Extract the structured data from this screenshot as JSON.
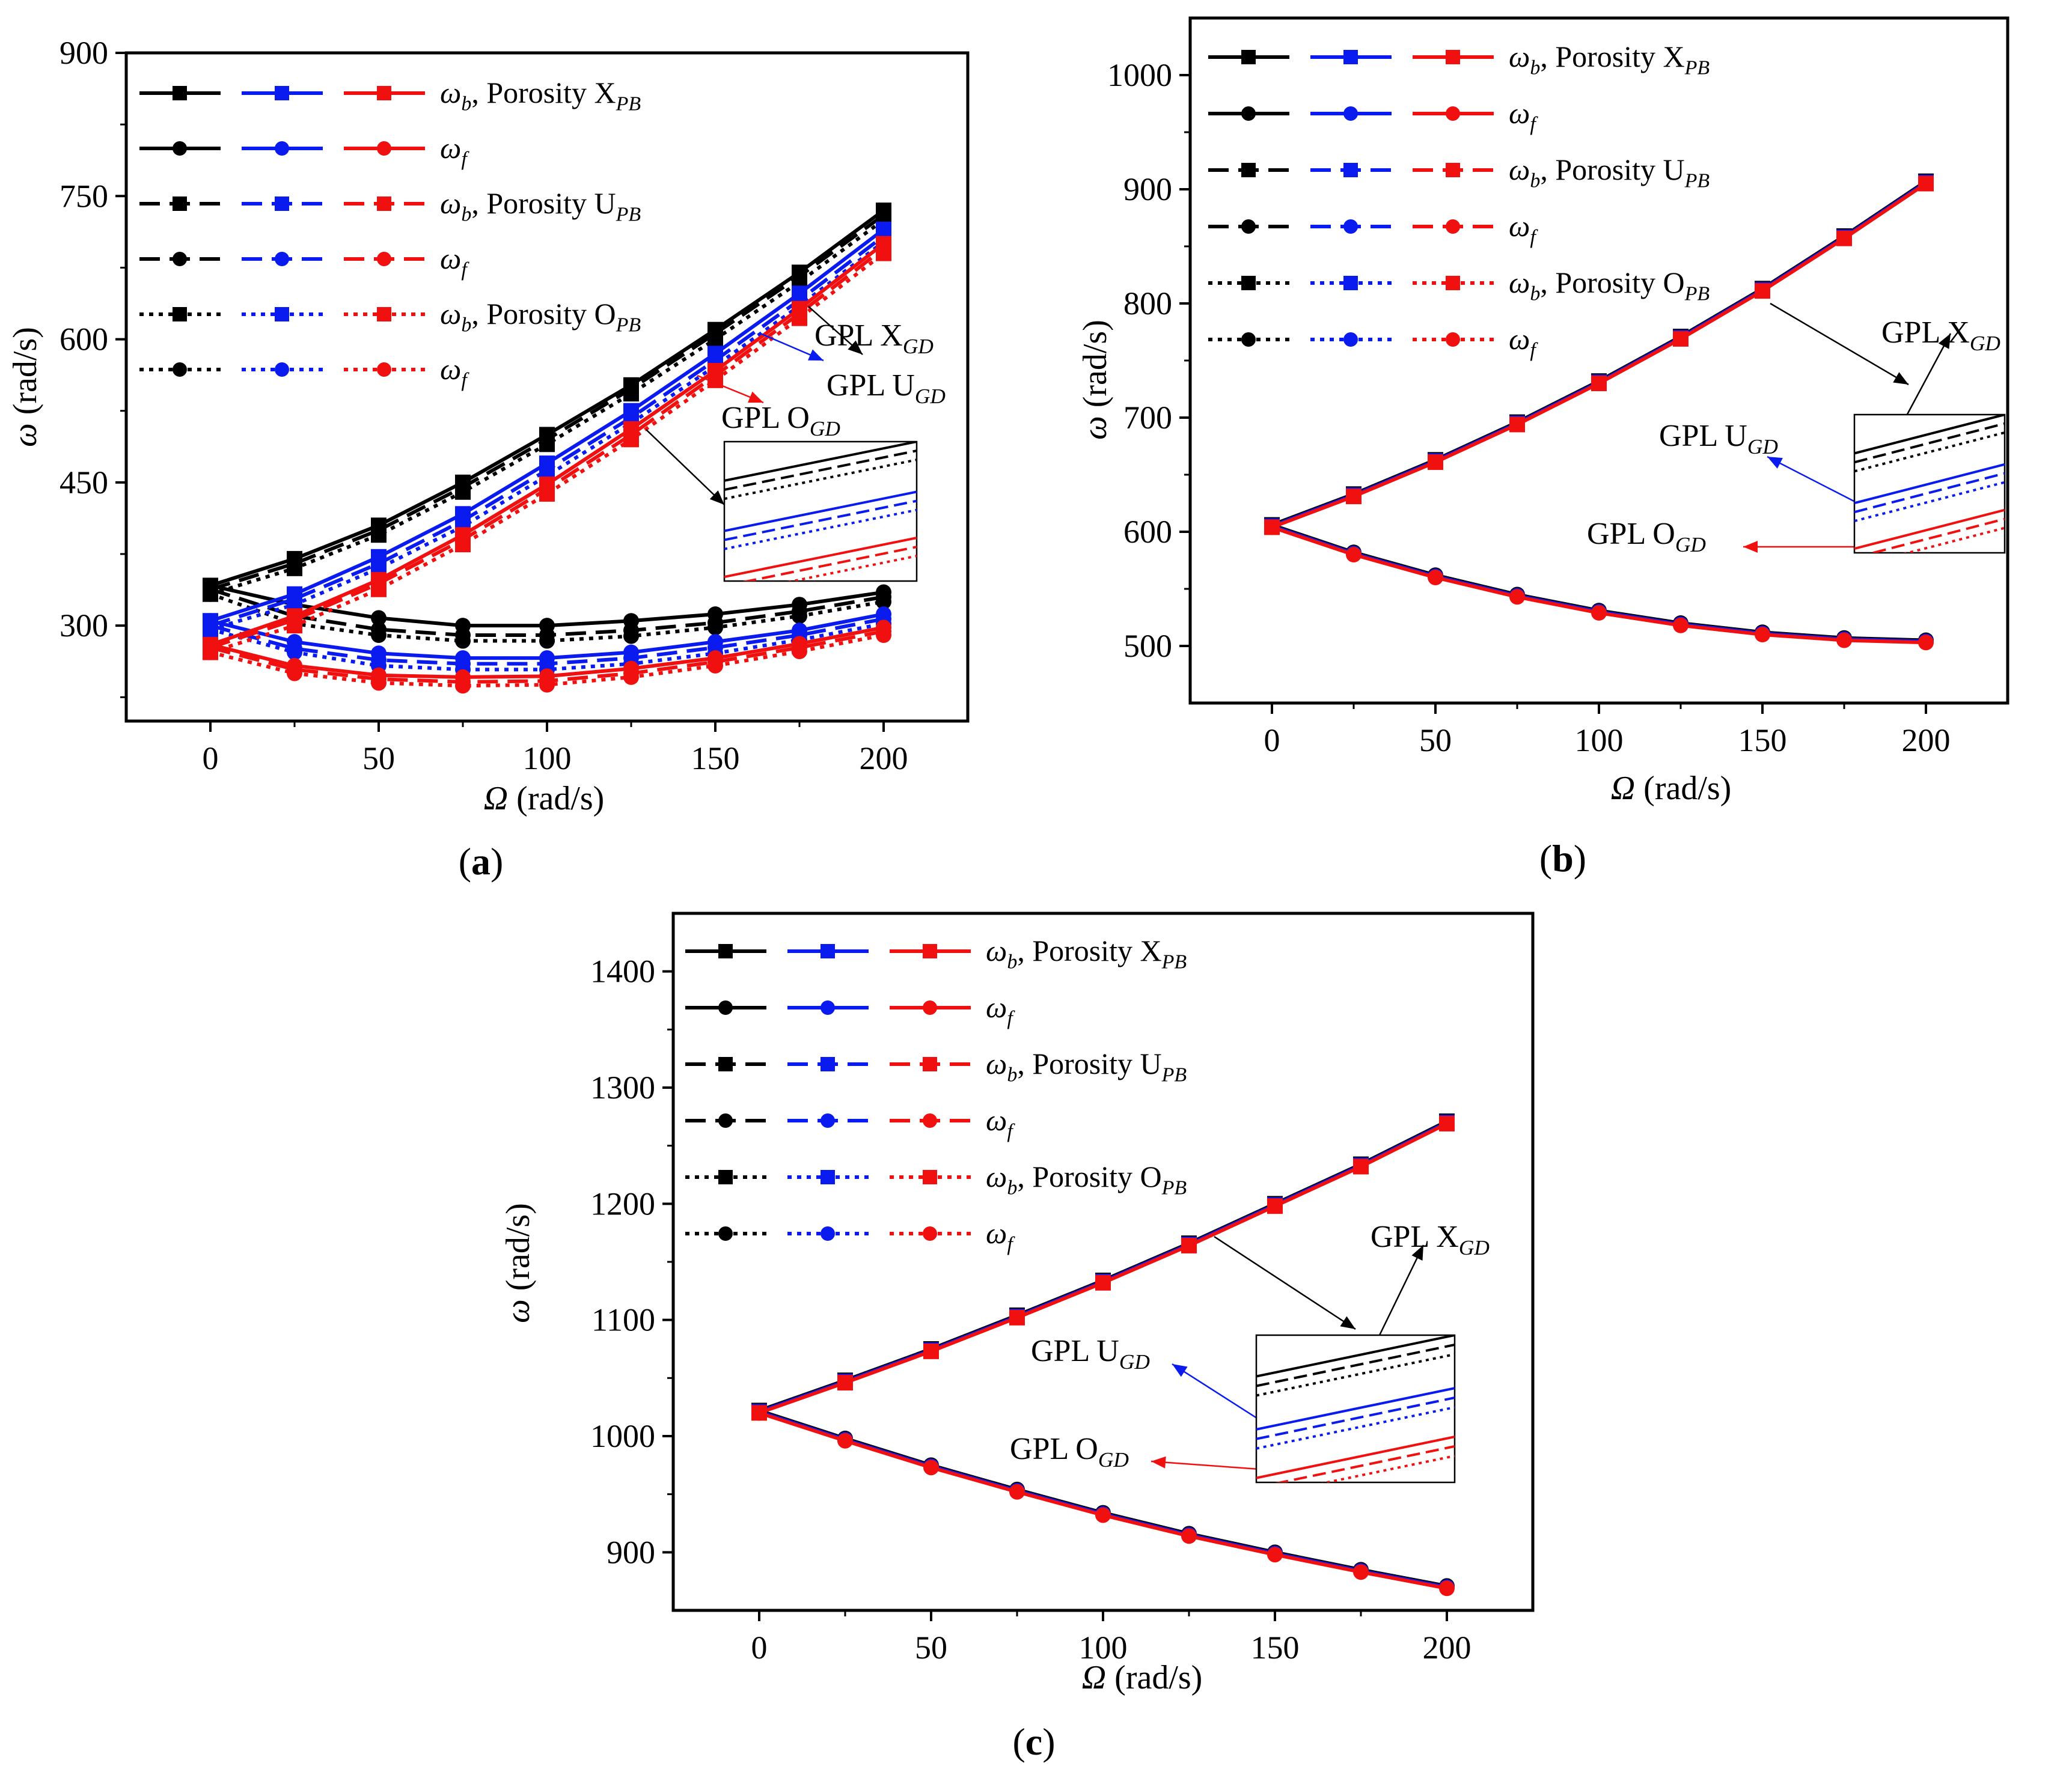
{
  "colors": {
    "black": "#000000",
    "blue": "#0a1bf0",
    "red": "#f01010"
  },
  "chart_data": [
    {
      "type": "line",
      "panel_label": "(a)",
      "xlabel_symbol": "Ω",
      "xlabel_unit": "(rad/s)",
      "ylabel_symbol": "ω",
      "ylabel_unit": "(rad/s)",
      "xlim": [
        -25,
        225
      ],
      "ylim": [
        200,
        900
      ],
      "xticks": [
        "0",
        "50",
        "100",
        "150",
        "200"
      ],
      "yticks": [
        "300",
        "450",
        "600",
        "750",
        "900"
      ],
      "x": [
        0,
        25,
        50,
        75,
        100,
        125,
        150,
        175,
        200
      ],
      "legend": [
        {
          "symbol": "ω",
          "sub": "b",
          "text": ", Porosity X",
          "textsub": "PB"
        },
        {
          "symbol": "ω",
          "sub": "f",
          "text": "",
          "textsub": ""
        },
        {
          "symbol": "ω",
          "sub": "b",
          "text": ", Porosity U",
          "textsub": "PB"
        },
        {
          "symbol": "ω",
          "sub": "f",
          "text": "",
          "textsub": ""
        },
        {
          "symbol": "ω",
          "sub": "b",
          "text": ", Porosity O",
          "textsub": "PB"
        },
        {
          "symbol": "ω",
          "sub": "f",
          "text": "",
          "textsub": ""
        }
      ],
      "annotations": [
        {
          "text": "GPL X",
          "sub": "GD",
          "color": "black"
        },
        {
          "text": "GPL U",
          "sub": "GD",
          "color": "blue"
        },
        {
          "text": "GPL O",
          "sub": "GD",
          "color": "red"
        }
      ],
      "series": [
        {
          "gpl": "X",
          "porosity": "X",
          "mode": "backward",
          "values": [
            342,
            370,
            405,
            450,
            500,
            552,
            610,
            670,
            735
          ]
        },
        {
          "gpl": "X",
          "porosity": "X",
          "mode": "forward",
          "values": [
            342,
            322,
            308,
            300,
            300,
            305,
            312,
            322,
            335
          ]
        },
        {
          "gpl": "X",
          "porosity": "U",
          "mode": "backward",
          "values": [
            338,
            365,
            400,
            445,
            495,
            548,
            606,
            666,
            730
          ]
        },
        {
          "gpl": "X",
          "porosity": "U",
          "mode": "forward",
          "values": [
            338,
            310,
            296,
            290,
            290,
            295,
            303,
            315,
            330
          ]
        },
        {
          "gpl": "X",
          "porosity": "O",
          "mode": "backward",
          "values": [
            333,
            360,
            395,
            440,
            490,
            543,
            600,
            660,
            725
          ]
        },
        {
          "gpl": "X",
          "porosity": "O",
          "mode": "forward",
          "values": [
            333,
            302,
            290,
            284,
            284,
            289,
            298,
            310,
            325
          ]
        },
        {
          "gpl": "U",
          "porosity": "X",
          "mode": "backward",
          "values": [
            305,
            333,
            372,
            417,
            470,
            525,
            585,
            648,
            715
          ]
        },
        {
          "gpl": "U",
          "porosity": "X",
          "mode": "forward",
          "values": [
            305,
            283,
            271,
            266,
            266,
            272,
            283,
            295,
            312
          ]
        },
        {
          "gpl": "U",
          "porosity": "U",
          "mode": "backward",
          "values": [
            300,
            328,
            365,
            410,
            463,
            518,
            578,
            641,
            708
          ]
        },
        {
          "gpl": "U",
          "porosity": "U",
          "mode": "forward",
          "values": [
            300,
            276,
            264,
            260,
            260,
            266,
            277,
            290,
            307
          ]
        },
        {
          "gpl": "U",
          "porosity": "O",
          "mode": "backward",
          "values": [
            296,
            322,
            360,
            404,
            457,
            512,
            572,
            635,
            702
          ]
        },
        {
          "gpl": "U",
          "porosity": "O",
          "mode": "forward",
          "values": [
            296,
            272,
            258,
            254,
            254,
            260,
            271,
            285,
            302
          ]
        },
        {
          "gpl": "O",
          "porosity": "X",
          "mode": "backward",
          "values": [
            280,
            310,
            348,
            395,
            448,
            506,
            567,
            632,
            700
          ]
        },
        {
          "gpl": "O",
          "porosity": "X",
          "mode": "forward",
          "values": [
            280,
            258,
            248,
            246,
            247,
            255,
            266,
            281,
            298
          ]
        },
        {
          "gpl": "O",
          "porosity": "U",
          "mode": "backward",
          "values": [
            277,
            306,
            344,
            390,
            443,
            500,
            562,
            627,
            695
          ]
        },
        {
          "gpl": "O",
          "porosity": "U",
          "mode": "forward",
          "values": [
            277,
            254,
            244,
            241,
            242,
            250,
            262,
            277,
            294
          ]
        },
        {
          "gpl": "O",
          "porosity": "O",
          "mode": "backward",
          "values": [
            272,
            300,
            338,
            385,
            438,
            495,
            557,
            622,
            690
          ]
        },
        {
          "gpl": "O",
          "porosity": "O",
          "mode": "forward",
          "values": [
            272,
            250,
            240,
            237,
            238,
            246,
            258,
            273,
            290
          ]
        }
      ]
    },
    {
      "type": "line",
      "panel_label": "(b)",
      "xlabel_symbol": "Ω",
      "xlabel_unit": "(rad/s)",
      "ylabel_symbol": "ω",
      "ylabel_unit": "(rad/s)",
      "xlim": [
        -25,
        225
      ],
      "ylim": [
        450,
        1050
      ],
      "xticks": [
        "0",
        "50",
        "100",
        "150",
        "200"
      ],
      "yticks": [
        "500",
        "600",
        "700",
        "800",
        "900",
        "1000"
      ],
      "x": [
        0,
        25,
        50,
        75,
        100,
        125,
        150,
        175,
        200
      ],
      "legend": [
        {
          "symbol": "ω",
          "sub": "b",
          "text": ", Porosity X",
          "textsub": "PB"
        },
        {
          "symbol": "ω",
          "sub": "f",
          "text": "",
          "textsub": ""
        },
        {
          "symbol": "ω",
          "sub": "b",
          "text": ", Porosity U",
          "textsub": "PB"
        },
        {
          "symbol": "ω",
          "sub": "f",
          "text": "",
          "textsub": ""
        },
        {
          "symbol": "ω",
          "sub": "b",
          "text": ", Porosity O",
          "textsub": "PB"
        },
        {
          "symbol": "ω",
          "sub": "f",
          "text": "",
          "textsub": ""
        }
      ],
      "annotations": [
        {
          "text": "GPL X",
          "sub": "GD",
          "color": "black"
        },
        {
          "text": "GPL U",
          "sub": "GD",
          "color": "blue"
        },
        {
          "text": "GPL O",
          "sub": "GD",
          "color": "red"
        }
      ],
      "series": [
        {
          "gpl": "X",
          "porosity": "X",
          "mode": "backward",
          "values": [
            606,
            633,
            663,
            696,
            732,
            771,
            813,
            859,
            907
          ]
        },
        {
          "gpl": "X",
          "porosity": "X",
          "mode": "forward",
          "values": [
            606,
            582,
            562,
            545,
            531,
            520,
            512,
            507,
            505
          ]
        },
        {
          "gpl": "U",
          "porosity": "X",
          "mode": "backward",
          "values": [
            605,
            632,
            662,
            695,
            731,
            770,
            812,
            858,
            906
          ]
        },
        {
          "gpl": "U",
          "porosity": "X",
          "mode": "forward",
          "values": [
            605,
            581,
            561,
            544,
            530,
            519,
            511,
            506,
            504
          ]
        },
        {
          "gpl": "O",
          "porosity": "X",
          "mode": "backward",
          "values": [
            604,
            631,
            661,
            694,
            730,
            769,
            811,
            857,
            905
          ]
        },
        {
          "gpl": "O",
          "porosity": "X",
          "mode": "forward",
          "values": [
            604,
            580,
            560,
            543,
            529,
            518,
            510,
            505,
            503
          ]
        }
      ]
    },
    {
      "type": "line",
      "panel_label": "(c)",
      "xlabel_symbol": "Ω",
      "xlabel_unit": "(rad/s)",
      "ylabel_symbol": "ω",
      "ylabel_unit": "(rad/s)",
      "xlim": [
        -25,
        225
      ],
      "ylim": [
        850,
        1450
      ],
      "xticks": [
        "0",
        "50",
        "100",
        "150",
        "200"
      ],
      "yticks": [
        "900",
        "1000",
        "1100",
        "1200",
        "1300",
        "1400"
      ],
      "x": [
        0,
        25,
        50,
        75,
        100,
        125,
        150,
        175,
        200
      ],
      "legend": [
        {
          "symbol": "ω",
          "sub": "b",
          "text": ", Porosity X",
          "textsub": "PB"
        },
        {
          "symbol": "ω",
          "sub": "f",
          "text": "",
          "textsub": ""
        },
        {
          "symbol": "ω",
          "sub": "b",
          "text": ", Porosity U",
          "textsub": "PB"
        },
        {
          "symbol": "ω",
          "sub": "f",
          "text": "",
          "textsub": ""
        },
        {
          "symbol": "ω",
          "sub": "b",
          "text": ", Porosity O",
          "textsub": "PB"
        },
        {
          "symbol": "ω",
          "sub": "f",
          "text": "",
          "textsub": ""
        }
      ],
      "annotations": [
        {
          "text": "GPL X",
          "sub": "GD",
          "color": "black"
        },
        {
          "text": "GPL U",
          "sub": "GD",
          "color": "blue"
        },
        {
          "text": "GPL O",
          "sub": "GD",
          "color": "red"
        }
      ],
      "series": [
        {
          "gpl": "X",
          "porosity": "X",
          "mode": "backward",
          "values": [
            1022,
            1048,
            1075,
            1104,
            1134,
            1166,
            1200,
            1234,
            1271
          ]
        },
        {
          "gpl": "X",
          "porosity": "X",
          "mode": "forward",
          "values": [
            1022,
            998,
            975,
            954,
            934,
            916,
            900,
            885,
            871
          ]
        },
        {
          "gpl": "U",
          "porosity": "X",
          "mode": "backward",
          "values": [
            1021,
            1047,
            1074,
            1103,
            1133,
            1165,
            1199,
            1233,
            1270
          ]
        },
        {
          "gpl": "U",
          "porosity": "X",
          "mode": "forward",
          "values": [
            1021,
            997,
            974,
            953,
            933,
            915,
            899,
            884,
            870
          ]
        },
        {
          "gpl": "O",
          "porosity": "X",
          "mode": "backward",
          "values": [
            1020,
            1046,
            1073,
            1102,
            1132,
            1164,
            1198,
            1232,
            1269
          ]
        },
        {
          "gpl": "O",
          "porosity": "X",
          "mode": "forward",
          "values": [
            1020,
            996,
            973,
            952,
            932,
            914,
            898,
            883,
            869
          ]
        }
      ]
    }
  ]
}
